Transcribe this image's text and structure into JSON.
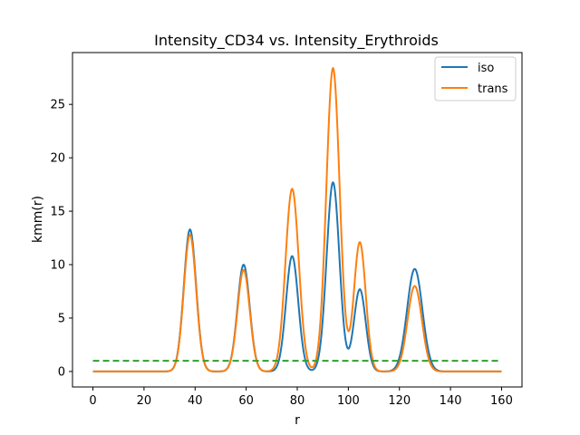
{
  "chart_data": {
    "type": "line",
    "title": "Intensity_CD34 vs. Intensity_Erythroids",
    "xlabel": "r",
    "ylabel": "kmm(r)",
    "xlim": [
      -8,
      168
    ],
    "ylim": [
      -1.45,
      29.85
    ],
    "xticks": [
      0,
      20,
      40,
      60,
      80,
      100,
      120,
      140,
      160
    ],
    "yticks": [
      0,
      5,
      10,
      15,
      20,
      25
    ],
    "grid": false,
    "legend": {
      "placement": "top-right"
    },
    "series": [
      {
        "name": "iso",
        "color": "#1f77b4",
        "baseline": 0,
        "peaks": [
          {
            "x": 38,
            "y": 13.3,
            "width": 2.4
          },
          {
            "x": 59,
            "y": 10.0,
            "width": 2.4
          },
          {
            "x": 78,
            "y": 10.8,
            "width": 2.4
          },
          {
            "x": 94,
            "y": 17.7,
            "width": 2.5
          },
          {
            "x": 104.5,
            "y": 7.7,
            "width": 2.3
          },
          {
            "x": 126,
            "y": 9.6,
            "width": 3.0
          }
        ]
      },
      {
        "name": "trans",
        "color": "#ff7f0e",
        "baseline": 0,
        "peaks": [
          {
            "x": 38,
            "y": 12.8,
            "width": 2.4
          },
          {
            "x": 59,
            "y": 9.5,
            "width": 2.4
          },
          {
            "x": 78,
            "y": 17.1,
            "width": 2.6
          },
          {
            "x": 94,
            "y": 28.4,
            "width": 2.6
          },
          {
            "x": 104.5,
            "y": 12.1,
            "width": 2.3
          },
          {
            "x": 126,
            "y": 8.0,
            "width": 2.8
          }
        ]
      },
      {
        "name": "",
        "color": "#2ca02c",
        "dashed": true,
        "x": [
          0,
          160
        ],
        "y": [
          1,
          1
        ]
      }
    ]
  }
}
